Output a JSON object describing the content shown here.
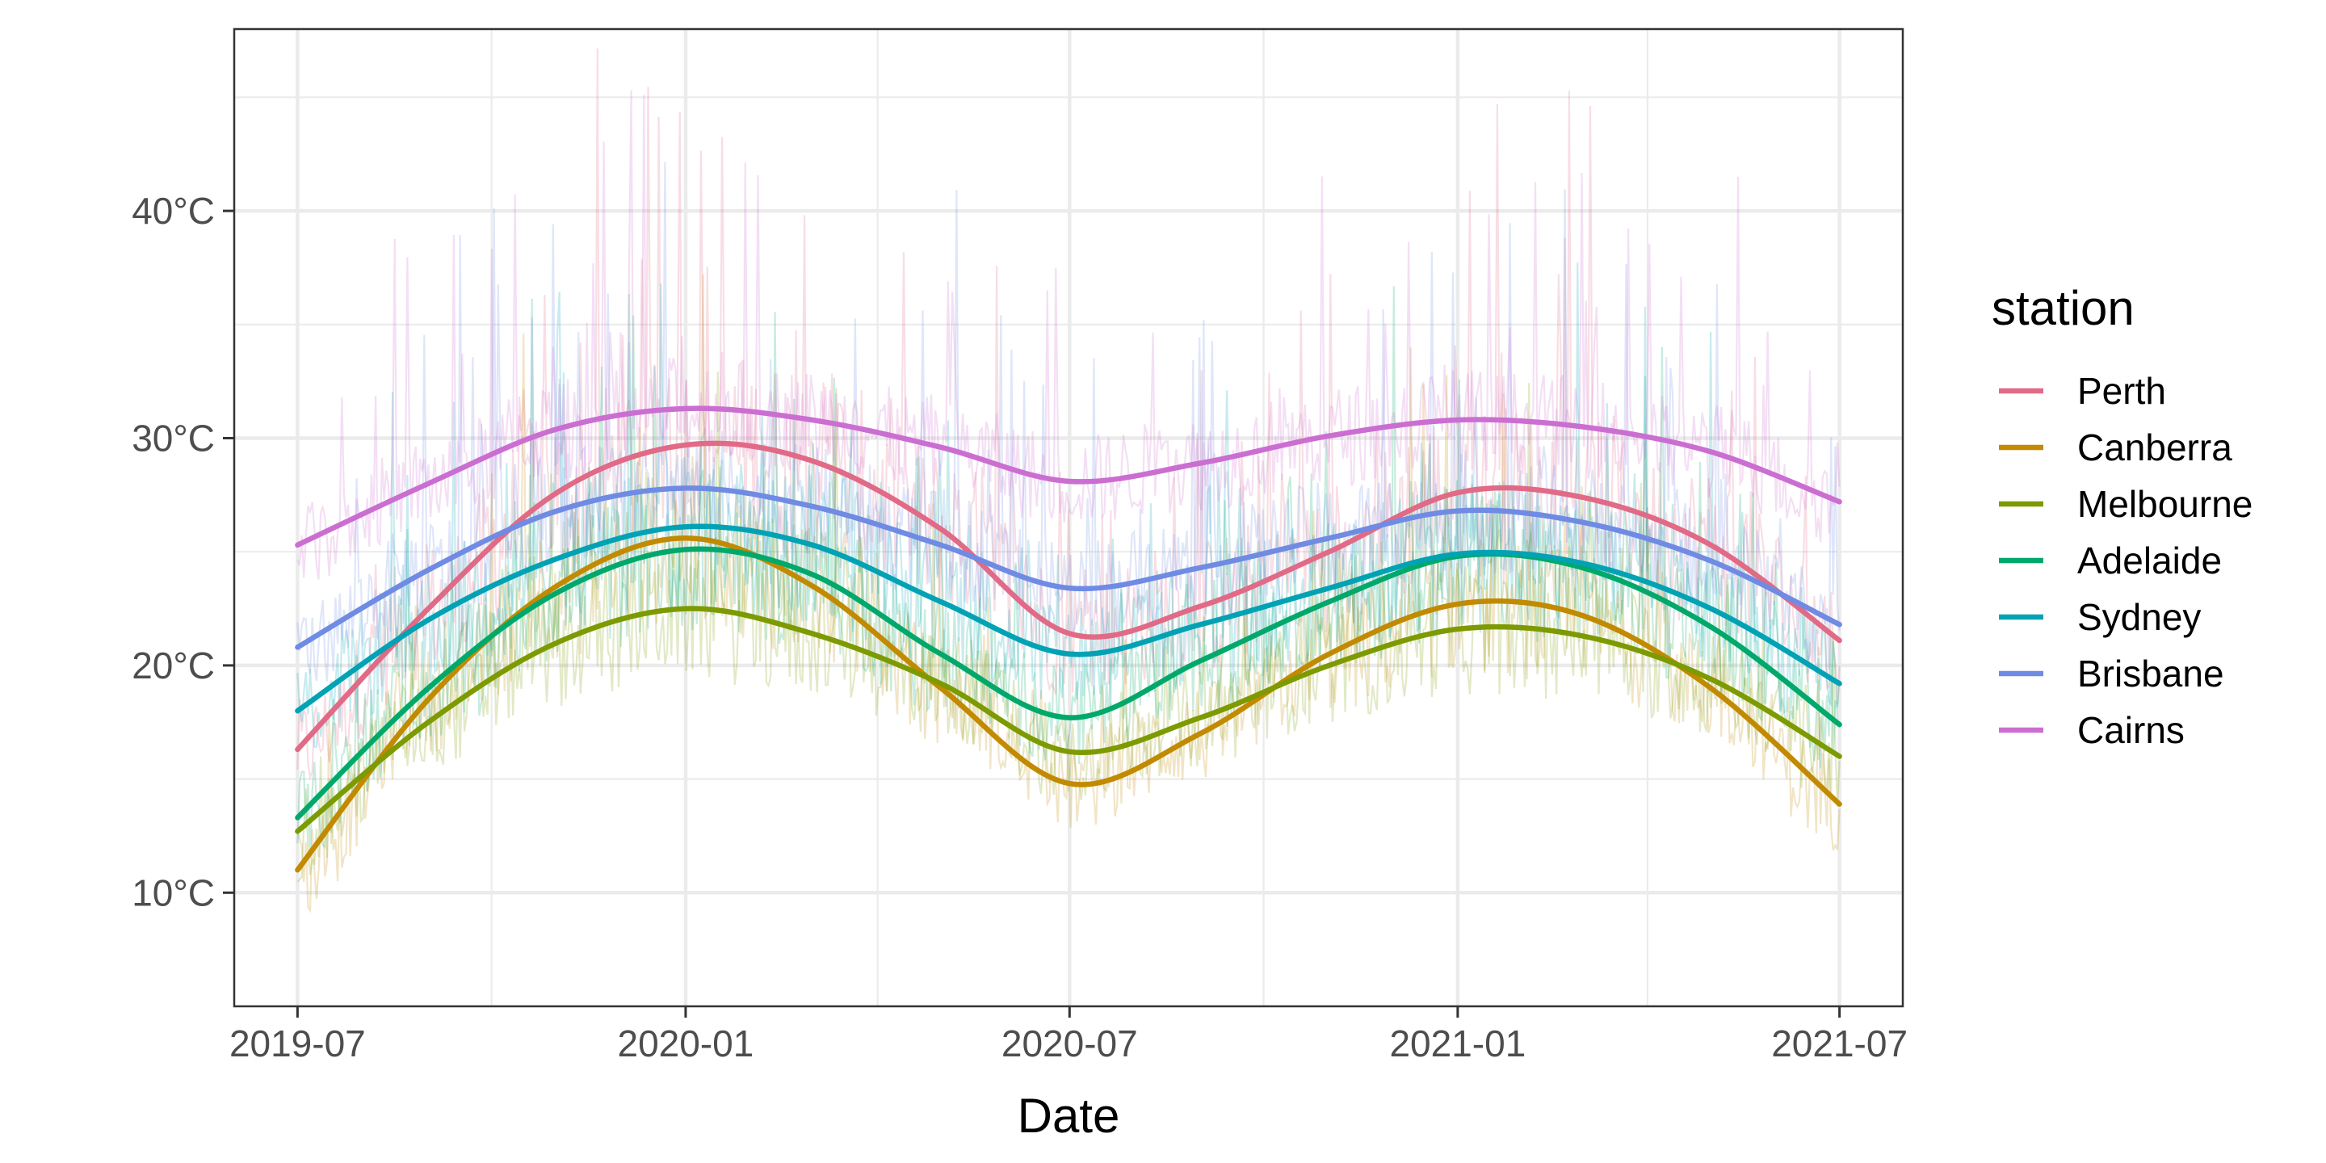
{
  "chart_data": {
    "type": "line",
    "title": "",
    "xlabel": "Date",
    "ylabel": "",
    "x_tick_labels": [
      "2019-07",
      "2020-01",
      "2020-07",
      "2021-01",
      "2021-07"
    ],
    "y_tick_labels": [
      "10°C",
      "20°C",
      "30°C",
      "40°C"
    ],
    "y_ticks": [
      10,
      20,
      30,
      40
    ],
    "xlim": [
      "2019-06-01",
      "2021-07-31"
    ],
    "ylim": [
      5,
      48
    ],
    "grid": true,
    "legend": {
      "title": "station",
      "position": "right"
    },
    "x": [
      "2019-07-01",
      "2019-09-01",
      "2019-11-01",
      "2020-01-01",
      "2020-03-01",
      "2020-05-01",
      "2020-07-01",
      "2020-09-01",
      "2020-11-01",
      "2021-01-01",
      "2021-03-01",
      "2021-05-01",
      "2021-07-01"
    ],
    "series": [
      {
        "name": "Perth",
        "color": "#E16A86",
        "values": [
          16.3,
          22.5,
          27.6,
          29.7,
          29.0,
          26.0,
          21.4,
          22.6,
          25.0,
          27.6,
          27.4,
          25.3,
          21.1
        ]
      },
      {
        "name": "Canberra",
        "color": "#C18A00",
        "values": [
          11.0,
          18.5,
          23.5,
          25.6,
          23.5,
          19.0,
          14.8,
          17.0,
          20.5,
          22.7,
          22.2,
          19.0,
          13.9
        ]
      },
      {
        "name": "Melbourne",
        "color": "#7D9A00",
        "values": [
          12.7,
          17.5,
          21.0,
          22.5,
          21.4,
          19.2,
          16.2,
          17.7,
          20.0,
          21.6,
          21.3,
          19.4,
          16.0
        ]
      },
      {
        "name": "Adelaide",
        "color": "#00A86B",
        "values": [
          13.3,
          19.0,
          23.2,
          25.1,
          24.0,
          20.5,
          17.7,
          20.2,
          22.8,
          24.8,
          24.3,
          21.7,
          17.4
        ]
      },
      {
        "name": "Sydney",
        "color": "#00A2B4",
        "values": [
          18.0,
          22.0,
          24.7,
          26.1,
          25.3,
          22.8,
          20.5,
          21.8,
          23.4,
          24.9,
          24.5,
          22.5,
          19.2
        ]
      },
      {
        "name": "Brisbane",
        "color": "#6F8BE3",
        "values": [
          20.8,
          24.2,
          26.8,
          27.8,
          27.0,
          25.3,
          23.4,
          24.3,
          25.6,
          26.8,
          26.3,
          24.6,
          21.8
        ]
      },
      {
        "name": "Cairns",
        "color": "#CB6ED1",
        "values": [
          25.3,
          28.0,
          30.4,
          31.3,
          30.8,
          29.6,
          28.1,
          28.9,
          30.1,
          30.8,
          30.5,
          29.4,
          27.2
        ]
      }
    ]
  }
}
